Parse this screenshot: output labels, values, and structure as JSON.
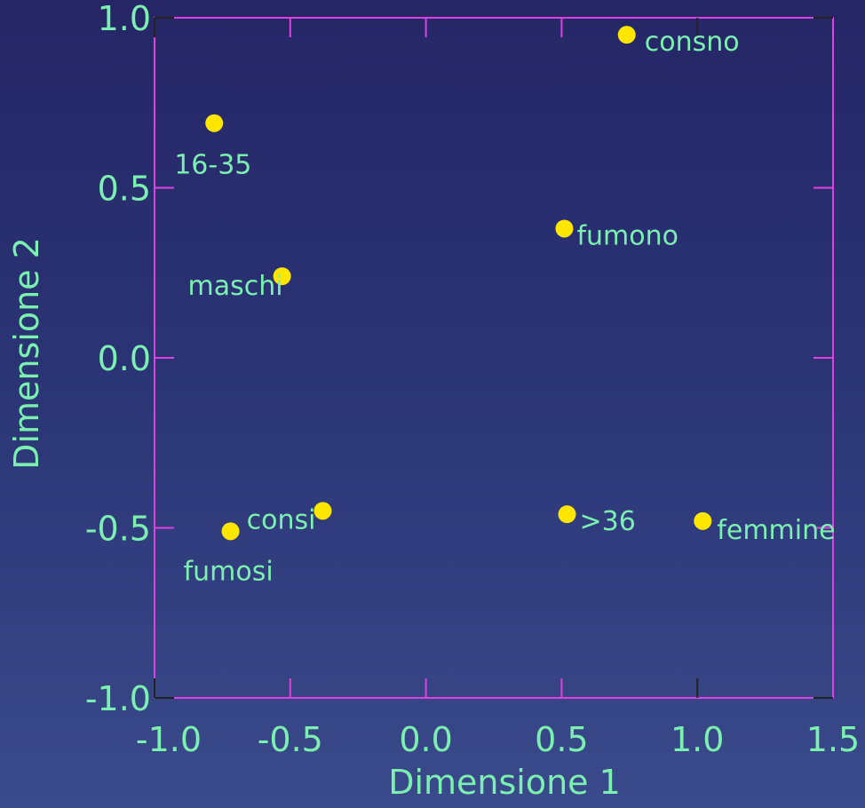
{
  "chart_data": {
    "type": "scatter",
    "xlabel": "Dimensione 1",
    "ylabel": "Dimensione 2",
    "xlim": [
      -1.0,
      1.5
    ],
    "ylim": [
      -1.0,
      1.0
    ],
    "x_ticks": [
      "-1.0",
      "-0.5",
      "0.0",
      "0.5",
      "1.0",
      "1.5"
    ],
    "y_ticks": [
      "1.0",
      "0.5",
      "0.0",
      "-0.5",
      "-1.0"
    ],
    "grid": false,
    "points": [
      {
        "label": "consno",
        "x": 0.74,
        "y": 0.95
      },
      {
        "label": "16-35",
        "x": -0.78,
        "y": 0.69
      },
      {
        "label": "fumono",
        "x": 0.51,
        "y": 0.38
      },
      {
        "label": "maschi",
        "x": -0.53,
        "y": 0.24
      },
      {
        "label": "consi",
        "x": -0.38,
        "y": -0.45
      },
      {
        "label": "fumosi",
        "x": -0.72,
        "y": -0.51
      },
      {
        "label": ">36",
        "x": 0.52,
        "y": -0.46
      },
      {
        "label": "femmine",
        "x": 1.02,
        "y": -0.48
      }
    ]
  },
  "colors": {
    "frame": "#E040E0",
    "text": "#7CF0B0",
    "marker": "#FFE600",
    "tick_dark": "#222222"
  }
}
